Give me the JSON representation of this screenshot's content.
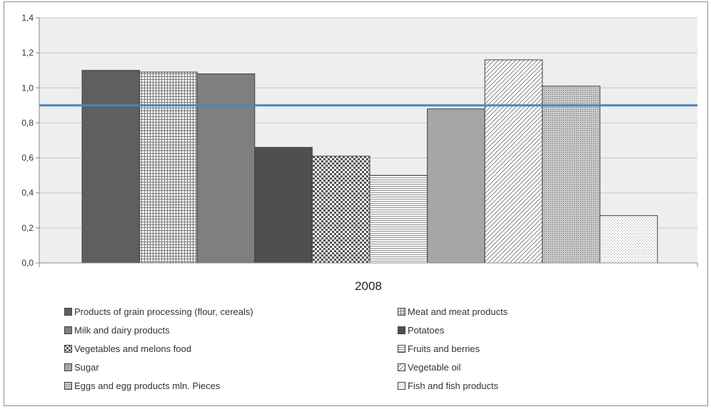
{
  "chart_data": {
    "type": "bar",
    "categories": [
      "2008"
    ],
    "series": [
      {
        "name": "Products of grain processing (flour, cereals)",
        "values": [
          1.1
        ],
        "fill": "#5f5f5f",
        "pattern": "solid"
      },
      {
        "name": "Meat and meat products",
        "values": [
          1.09
        ],
        "fill": "#ffffff",
        "pattern": "grid"
      },
      {
        "name": "Milk and dairy products",
        "values": [
          1.08
        ],
        "fill": "#7f7f7f",
        "pattern": "solid"
      },
      {
        "name": "Potatoes",
        "values": [
          0.66
        ],
        "fill": "#4f4f4f",
        "pattern": "solid"
      },
      {
        "name": "Vegetables and melons food",
        "values": [
          0.61
        ],
        "fill": "#ffffff",
        "pattern": "checker"
      },
      {
        "name": "Fruits and berries",
        "values": [
          0.5
        ],
        "fill": "#ffffff",
        "pattern": "hlines"
      },
      {
        "name": "Sugar",
        "values": [
          0.88
        ],
        "fill": "#a6a6a6",
        "pattern": "solid"
      },
      {
        "name": "Vegetable oil",
        "values": [
          1.16
        ],
        "fill": "#ffffff",
        "pattern": "diag"
      },
      {
        "name": "Eggs and egg products mln. Pieces",
        "values": [
          1.01
        ],
        "fill": "#bfbfbf",
        "pattern": "dots-dense"
      },
      {
        "name": "Fish and fish products",
        "values": [
          0.27
        ],
        "fill": "#ffffff",
        "pattern": "dots"
      }
    ],
    "reference_line": {
      "value": 0.9,
      "color": "#4f81bd"
    },
    "yticks": [
      "0,0",
      "0,2",
      "0,4",
      "0,6",
      "0,8",
      "1,0",
      "1,2",
      "1,4"
    ],
    "ylim": [
      0,
      1.4
    ],
    "xlabel": "",
    "ylabel": "",
    "title": "",
    "plot_background": "#eeeeee",
    "legend_position": "bottom",
    "grid": true
  }
}
